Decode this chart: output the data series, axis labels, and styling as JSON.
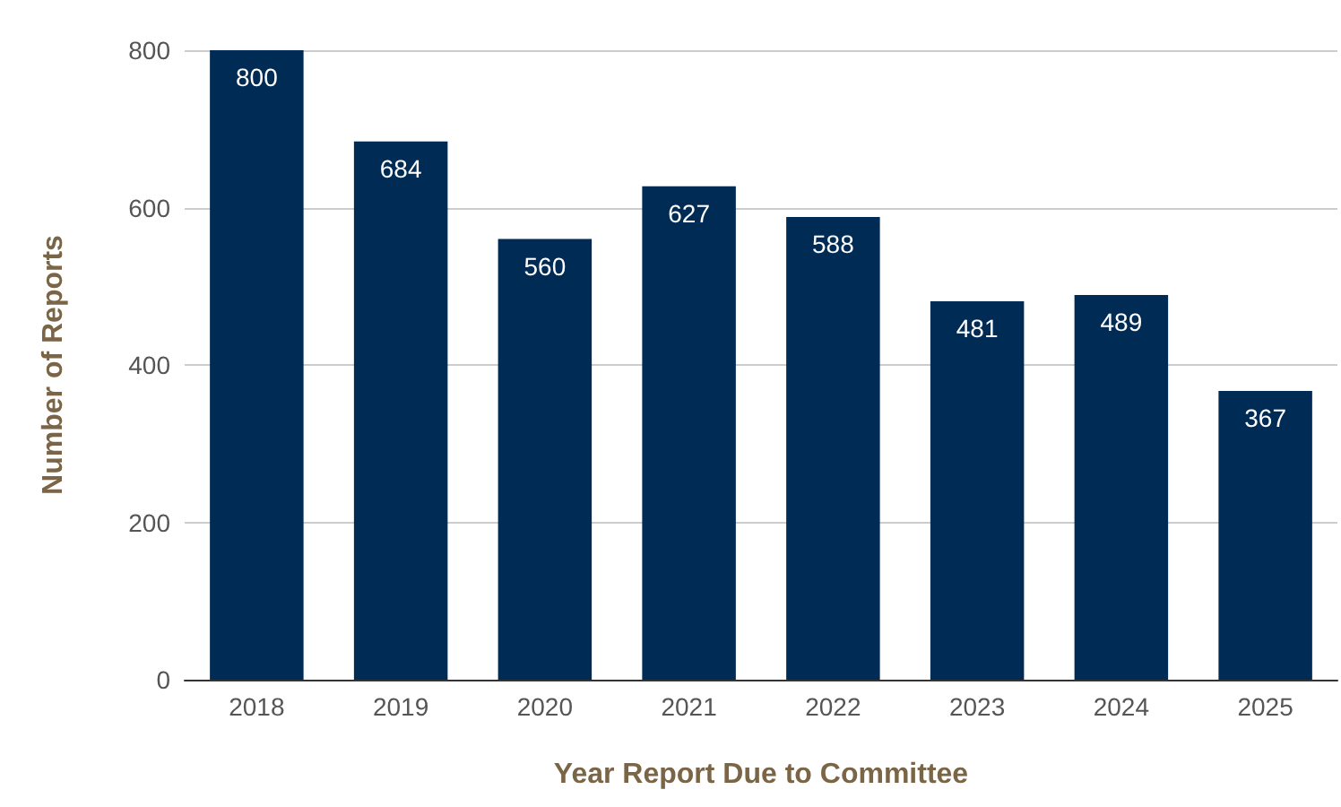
{
  "chart_data": {
    "type": "bar",
    "xlabel": "Year Report Due to Committee",
    "ylabel": "Number of Reports",
    "categories": [
      "2018",
      "2019",
      "2020",
      "2021",
      "2022",
      "2023",
      "2024",
      "2025"
    ],
    "values": [
      800,
      684,
      560,
      627,
      588,
      481,
      489,
      367
    ],
    "color": "#002b54",
    "ylim": [
      0,
      800
    ],
    "yticks": [
      0,
      200,
      400,
      600,
      800
    ],
    "grid": "y",
    "data_labels": true
  }
}
